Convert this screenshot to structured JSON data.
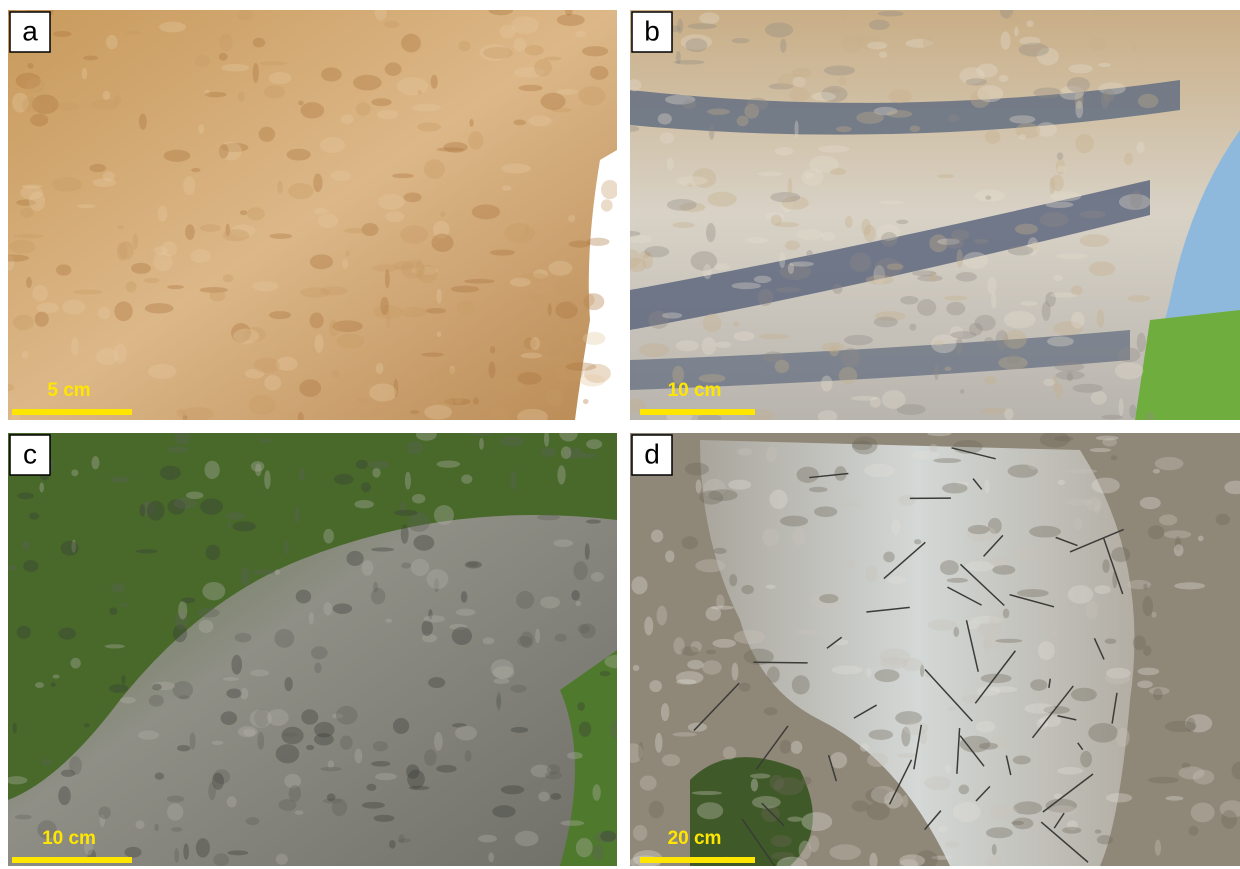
{
  "panels": [
    {
      "label": "a",
      "scale": "5 cm"
    },
    {
      "label": "b",
      "scale": "10 cm"
    },
    {
      "label": "c",
      "scale": "10 cm"
    },
    {
      "label": "d",
      "scale": "20 cm"
    }
  ]
}
